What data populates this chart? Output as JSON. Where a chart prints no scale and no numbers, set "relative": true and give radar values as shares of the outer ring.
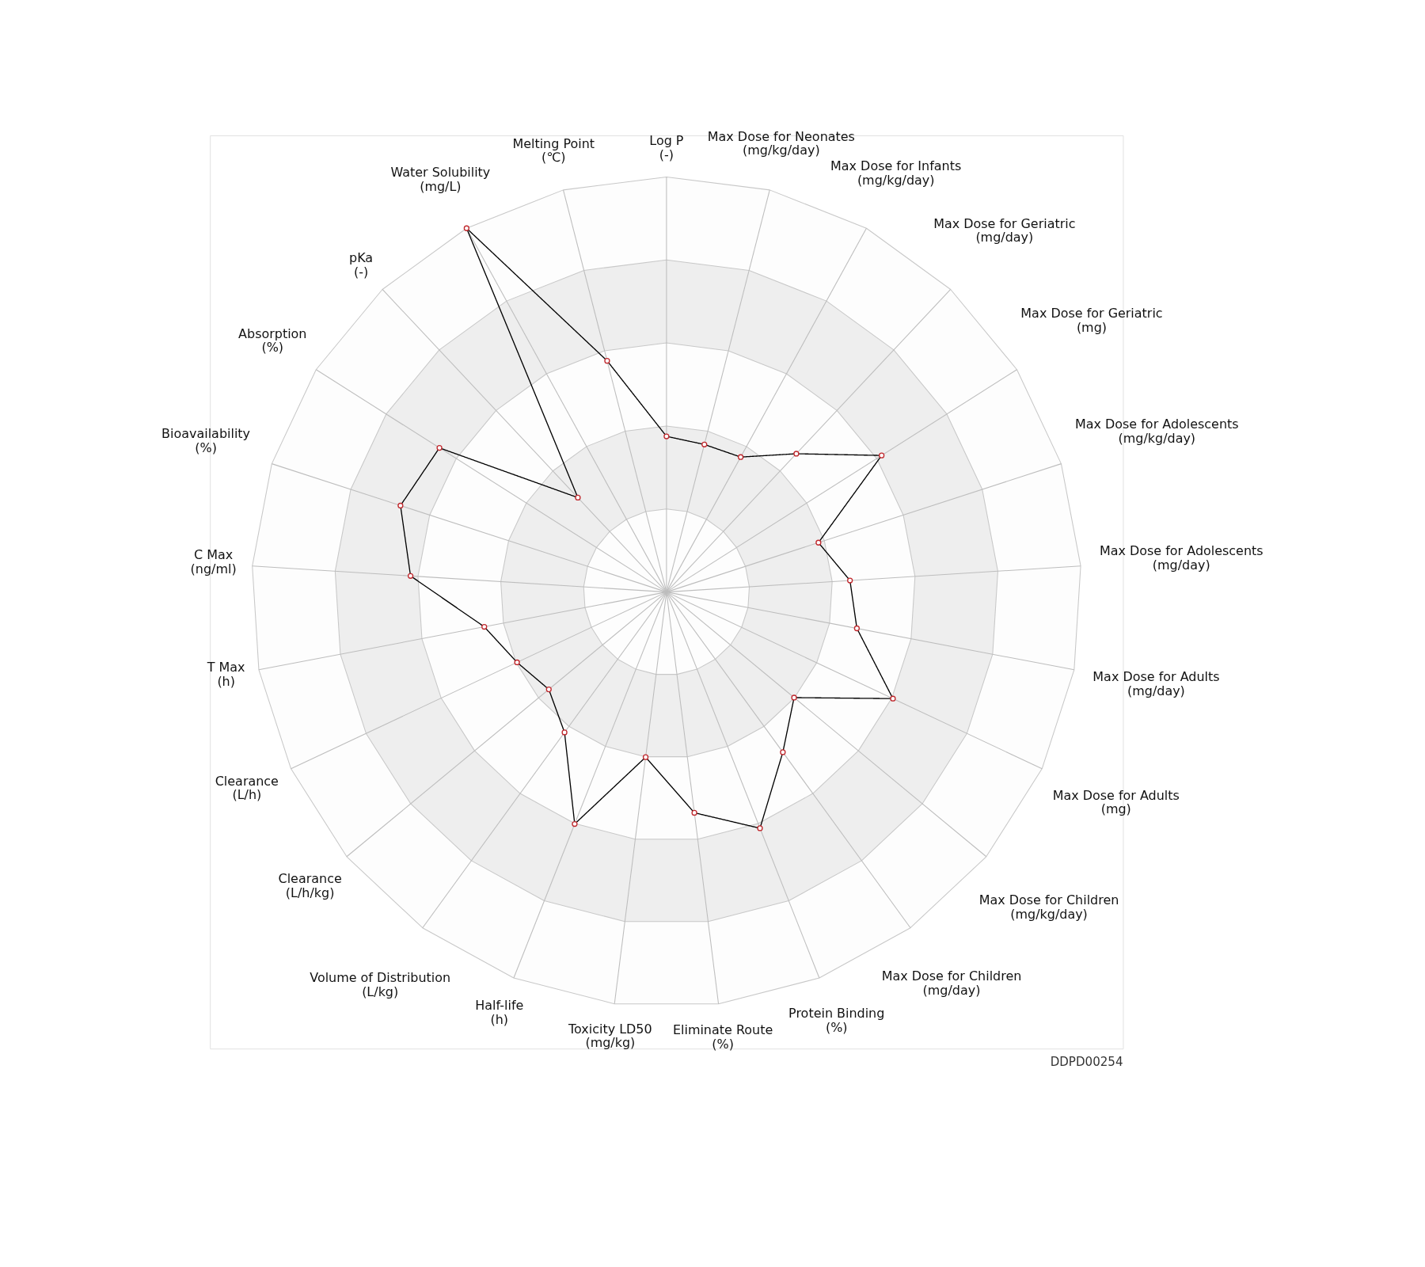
{
  "chart_data": {
    "type": "radar",
    "relative": true,
    "grid": true,
    "marker": "circle",
    "line_style": "solid",
    "legend": false,
    "categories": [
      "Log P\n(-)",
      "Max Dose for Neonates\n(mg/kg/day)",
      "Max Dose for Infants\n(mg/kg/day)",
      "Max Dose for Geriatric\n(mg/day)",
      "Max Dose for Geriatric\n(mg)",
      "Max Dose for Adolescents\n(mg/kg/day)",
      "Max Dose for Adolescents\n(mg/day)",
      "Max Dose for Adults\n(mg/day)",
      "Max Dose for Adults\n(mg)",
      "Max Dose for Children\n(mg/kg/day)",
      "Max Dose for Children\n(mg/day)",
      "Protein Binding\n(%)",
      "Eliminate Route\n(%)",
      "Toxicity LD50\n(mg/kg)",
      "Half-life\n(h)",
      "Volume of Distribution\n(L/kg)",
      "Clearance\n(L/h/kg)",
      "Clearance\n(L/h)",
      "T Max\n(h)",
      "C Max\n(ng/ml)",
      "Bioavailability\n(%)",
      "Absorption\n(%)",
      "pKa\n(-)",
      "Water Solubility\n(mg/L)",
      "Melting Point\n(℃)"
    ],
    "series": [
      {
        "color": "#000000",
        "values": [
          0.375,
          0.367,
          0.371,
          0.457,
          0.614,
          0.385,
          0.443,
          0.467,
          0.603,
          0.399,
          0.477,
          0.612,
          0.536,
          0.401,
          0.601,
          0.418,
          0.368,
          0.398,
          0.447,
          0.618,
          0.674,
          0.648,
          0.312,
          1.0,
          0.575
        ]
      }
    ],
    "annotations": [
      "DDPD00254"
    ]
  }
}
